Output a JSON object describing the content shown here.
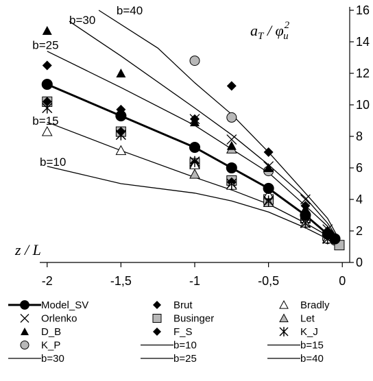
{
  "chart_data": {
    "type": "line",
    "x_axis": {
      "label": "z / L",
      "range": [
        -2.05,
        0.05
      ],
      "ticks": [
        -2,
        -1.5,
        -1,
        -0.5,
        0
      ],
      "tick_labels": [
        "-2",
        "-1,5",
        "-1",
        "-0,5",
        "0"
      ]
    },
    "y_axis": {
      "label": "a_T / φ_u^2",
      "range": [
        0,
        16
      ],
      "ticks": [
        0,
        2,
        4,
        6,
        8,
        10,
        12,
        14,
        16
      ],
      "tick_labels": [
        "0",
        "2",
        "4",
        "6",
        "8",
        "10",
        "12",
        "14",
        "16"
      ]
    },
    "curve_labels": [
      {
        "text": "b=40",
        "x": -1.53,
        "y": 16.0
      },
      {
        "text": "b=30",
        "x": -1.85,
        "y": 15.4
      },
      {
        "text": "b=25",
        "x": -2.1,
        "y": 13.8
      },
      {
        "text": "b=15",
        "x": -2.1,
        "y": 9.0
      },
      {
        "text": "b=10",
        "x": -2.05,
        "y": 6.4
      }
    ],
    "series": [
      {
        "name": "Model_SV",
        "kind": "line-marker",
        "marker": "circle-black",
        "x": [
          -2,
          -1.5,
          -1,
          -0.75,
          -0.5,
          -0.25,
          -0.1,
          -0.05
        ],
        "y": [
          11.3,
          9.3,
          7.3,
          6.0,
          4.7,
          3.0,
          1.8,
          1.5
        ]
      },
      {
        "name": "Brut",
        "kind": "marker",
        "marker": "diamond-black",
        "x": [
          -2,
          -1.5,
          -1,
          -0.75,
          -0.5,
          -0.25,
          -0.1
        ],
        "y": [
          12.5,
          9.7,
          9.1,
          11.2,
          7.0,
          3.6,
          2.0
        ]
      },
      {
        "name": "Bradly",
        "kind": "marker",
        "marker": "triangle-open",
        "x": [
          -2,
          -1.5,
          -1,
          -0.75,
          -0.5,
          -0.25,
          -0.1
        ],
        "y": [
          8.3,
          7.1,
          6.2,
          4.9,
          4.3,
          2.8,
          1.5
        ]
      },
      {
        "name": "Orlenko",
        "kind": "marker",
        "marker": "x",
        "x": [
          -1,
          -0.75,
          -0.5,
          -0.25,
          -0.1
        ],
        "y": [
          9.1,
          7.8,
          6.1,
          4.0,
          2.1
        ]
      },
      {
        "name": "Businger",
        "kind": "marker",
        "marker": "square-gray",
        "x": [
          -2,
          -1.5,
          -1,
          -0.75,
          -0.5,
          -0.25,
          -0.1,
          -0.02
        ],
        "y": [
          10.2,
          8.3,
          6.3,
          5.2,
          4.0,
          2.8,
          1.7,
          1.1
        ]
      },
      {
        "name": "Let",
        "kind": "marker",
        "marker": "triangle-gray",
        "x": [
          -1,
          -0.75,
          -0.5,
          -0.25
        ],
        "y": [
          5.6,
          7.2,
          3.8,
          2.5
        ]
      },
      {
        "name": "D_B",
        "kind": "marker",
        "marker": "triangle-black",
        "x": [
          -2,
          -1.5,
          -1,
          -0.75,
          -0.5,
          -0.25,
          -0.1
        ],
        "y": [
          14.7,
          12.0,
          8.9,
          7.4,
          6.0,
          3.4,
          2.0
        ]
      },
      {
        "name": "F_S",
        "kind": "marker",
        "marker": "diamond-black",
        "x": [
          -2,
          -1.5,
          -1,
          -0.75,
          -0.5,
          -0.25,
          -0.08
        ],
        "y": [
          10.2,
          8.3,
          6.3,
          5.1,
          4.1,
          3.0,
          1.8
        ]
      },
      {
        "name": "K_J",
        "kind": "marker",
        "marker": "asterisk",
        "x": [
          -2,
          -1.5,
          -1,
          -0.75,
          -0.5,
          -0.25,
          -0.1
        ],
        "y": [
          9.8,
          8.1,
          6.4,
          5.0,
          3.9,
          2.5,
          1.5
        ]
      },
      {
        "name": "K_P",
        "kind": "marker",
        "marker": "circle-gray",
        "x": [
          -1,
          -0.75,
          -0.5,
          -0.25,
          -0.1,
          -0.05
        ],
        "y": [
          12.8,
          9.2,
          5.8,
          2.7,
          1.5,
          1.4
        ]
      },
      {
        "name": "b=10",
        "kind": "line",
        "x": [
          -2,
          -1.5,
          -1,
          -0.75,
          -0.5,
          -0.25,
          -0.1,
          -0.03
        ],
        "y": [
          6.1,
          5.0,
          4.4,
          3.9,
          3.2,
          2.2,
          1.5,
          1.0
        ]
      },
      {
        "name": "b=15",
        "kind": "line",
        "x": [
          -2,
          -1.5,
          -1,
          -0.75,
          -0.5,
          -0.25,
          -0.1,
          -0.03
        ],
        "y": [
          8.9,
          7.1,
          5.4,
          4.6,
          3.7,
          2.5,
          1.7,
          1.1
        ]
      },
      {
        "name": "b=30",
        "kind": "line",
        "x": [
          -1.85,
          -1.5,
          -1,
          -0.75,
          -0.5,
          -0.25,
          -0.1,
          -0.03
        ],
        "y": [
          15.3,
          13.1,
          9.8,
          8.1,
          6.2,
          4.1,
          2.5,
          1.5
        ]
      },
      {
        "name": "b=25",
        "kind": "line",
        "x": [
          -2,
          -1.5,
          -1,
          -0.75,
          -0.5,
          -0.25,
          -0.1,
          -0.03
        ],
        "y": [
          13.4,
          11.1,
          8.7,
          7.2,
          5.7,
          3.6,
          2.3,
          1.4
        ]
      },
      {
        "name": "b=40",
        "kind": "line",
        "x": [
          -1.65,
          -1.25,
          -1,
          -0.75,
          -0.5,
          -0.25,
          -0.1,
          -0.03
        ],
        "y": [
          16.0,
          13.6,
          11.4,
          9.4,
          7.0,
          4.4,
          2.8,
          1.6
        ]
      }
    ],
    "legend": {
      "placement": "bottom",
      "entries": [
        "Model_SV",
        "Brut",
        "Bradly",
        "Orlenko",
        "Businger",
        "Let",
        "D_B",
        "F_S",
        "K_J",
        "K_P",
        "b=10",
        "b=15",
        "b=30",
        "b=25",
        "b=40"
      ]
    },
    "grid": false
  }
}
